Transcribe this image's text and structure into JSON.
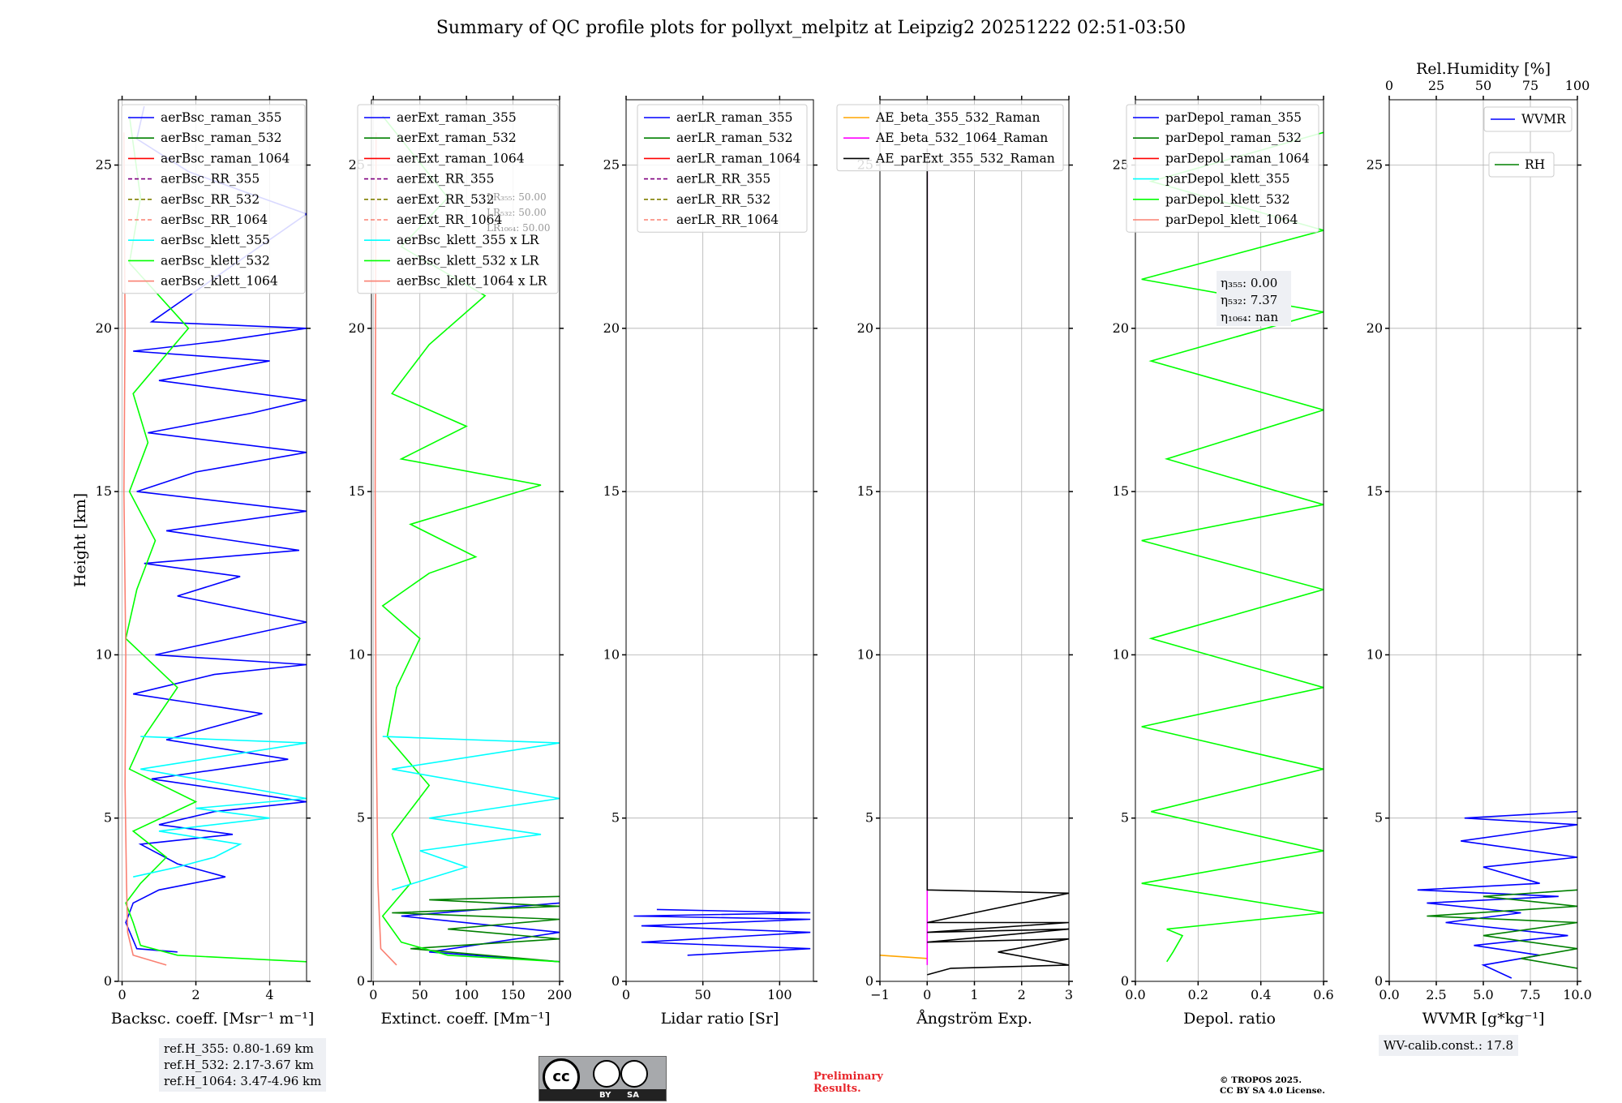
{
  "title": "Summary of QC profile plots for pollyxt_melpitz at Leipzig2 20251222 02:51-03:50",
  "ylabel": "Height [km]",
  "ref_info": [
    "ref.H_355: 0.80-1.69 km",
    "ref.H_532: 2.17-3.67 km",
    "ref.H_1064: 3.47-4.96 km"
  ],
  "wv_calib": "WV-calib.const.: 17.8",
  "prelim": [
    "Preliminary",
    "Results."
  ],
  "copyright": [
    "© TROPOS 2025.",
    "CC BY SA 4.0 License."
  ],
  "cc_logo": {
    "left": "cc",
    "by": "BY",
    "sa": "SA"
  },
  "colors": {
    "blue": "#0000ff",
    "green": "#00ff00",
    "darkgreen": "#008000",
    "cyan": "#00ffff",
    "salmon": "#fa8072",
    "red": "#ff0000",
    "orange": "#ffa500",
    "magenta": "#ff00ff",
    "purple": "#800080",
    "olive": "#808000",
    "black": "#000000"
  },
  "chart_data": [
    {
      "id": "bsc",
      "type": "line",
      "xlabel": "Backsc. coeff. [Msr⁻¹ m⁻¹]",
      "xlim": [
        -0.1,
        5
      ],
      "ylim": [
        0,
        27
      ],
      "xticks": [
        0,
        2,
        4
      ],
      "yticks": [
        0,
        5,
        10,
        15,
        20,
        25
      ],
      "legend": [
        "aerBsc_raman_355",
        "aerBsc_raman_532",
        "aerBsc_raman_1064",
        "aerBsc_RR_355",
        "aerBsc_RR_532",
        "aerBsc_RR_1064",
        "aerBsc_klett_355",
        "aerBsc_klett_532",
        "aerBsc_klett_1064"
      ],
      "legend_colors": [
        "blue",
        "darkgreen",
        "red",
        "purple",
        "olive",
        "salmon",
        "cyan",
        "green",
        "salmon"
      ],
      "legend_dashed": [
        false,
        false,
        false,
        true,
        true,
        true,
        false,
        false,
        false
      ],
      "series": [
        {
          "name": "aerBsc_raman_355",
          "color": "blue",
          "x": [
            1.5,
            0.4,
            0.1,
            0.3,
            1.0,
            2.8,
            1.5,
            0.5,
            3.0,
            1.0,
            2.5,
            5.0,
            0.8,
            4.5,
            1.2,
            3.8,
            0.3,
            2.5,
            5.0,
            0.9,
            5.0,
            1.5,
            3.2,
            0.6,
            4.8,
            1.2,
            5.0,
            0.4,
            2.0,
            5.0,
            0.7,
            3.5,
            5.0,
            1.0,
            4.0,
            0.3,
            2.6,
            5.0,
            0.8,
            5.0,
            1.8,
            0.4,
            0.6
          ],
          "y": [
            0.9,
            1.0,
            1.8,
            2.4,
            2.8,
            3.2,
            3.6,
            4.2,
            4.5,
            4.8,
            5.2,
            5.5,
            6.2,
            6.8,
            7.4,
            8.2,
            8.8,
            9.4,
            9.7,
            10.0,
            11.0,
            11.8,
            12.4,
            12.8,
            13.2,
            13.8,
            14.4,
            15.0,
            15.6,
            16.2,
            16.8,
            17.4,
            17.8,
            18.4,
            19.0,
            19.3,
            19.6,
            20.0,
            20.2,
            23.5,
            24.8,
            25.8,
            26.8
          ]
        },
        {
          "name": "aerBsc_klett_532",
          "color": "green",
          "x": [
            5.0,
            1.5,
            0.5,
            0.3,
            0.1,
            0.5,
            1.2,
            0.3,
            2.0,
            0.2,
            0.6,
            1.5,
            0.1,
            0.4,
            0.9,
            0.2,
            0.7,
            0.3,
            1.8,
            0.2,
            0.5,
            0.2
          ],
          "y": [
            0.6,
            0.8,
            1.1,
            1.8,
            2.4,
            3.0,
            3.8,
            4.6,
            5.5,
            6.5,
            7.5,
            9.0,
            10.5,
            12.0,
            13.5,
            15.0,
            16.5,
            18.0,
            20.0,
            22.0,
            24.0,
            26.5
          ]
        },
        {
          "name": "aerBsc_klett_355",
          "color": "cyan",
          "x": [
            0.3,
            1.5,
            2.5,
            3.2,
            1.0,
            4.0,
            2.0,
            5.0,
            0.5,
            5.0,
            0.5
          ],
          "y": [
            3.2,
            3.5,
            3.8,
            4.2,
            4.6,
            5.0,
            5.3,
            5.6,
            6.5,
            7.3,
            7.5
          ]
        },
        {
          "name": "aerBsc_klett_1064",
          "color": "salmon",
          "x": [
            1.2,
            0.3,
            0.15,
            0.12,
            0.08,
            0.1,
            0.05,
            0.08,
            0.05
          ],
          "y": [
            0.5,
            0.8,
            1.5,
            3.0,
            6.0,
            10.0,
            15.0,
            20.0,
            26.0
          ]
        }
      ]
    },
    {
      "id": "ext",
      "type": "line",
      "xlabel": "Extinct. coeff. [Mm⁻¹]",
      "xlim": [
        -2,
        200
      ],
      "ylim": [
        0,
        27
      ],
      "xticks": [
        0,
        50,
        100,
        150,
        200
      ],
      "yticks": [
        0,
        5,
        10,
        15,
        20,
        25
      ],
      "legend": [
        "aerExt_raman_355",
        "aerExt_raman_532",
        "aerExt_raman_1064",
        "aerExt_RR_355",
        "aerExt_RR_532",
        "aerExt_RR_1064",
        "aerBsc_klett_355 x LR",
        "aerBsc_klett_532 x LR",
        "aerBsc_klett_1064 x LR"
      ],
      "legend_colors": [
        "blue",
        "darkgreen",
        "red",
        "purple",
        "olive",
        "salmon",
        "cyan",
        "green",
        "salmon"
      ],
      "legend_dashed": [
        false,
        false,
        false,
        true,
        true,
        true,
        false,
        false,
        false
      ],
      "lr_labels": [
        "LR₃₅₅: 50.00",
        "LR₅₃₂: 50.00",
        "LR₁₀₆₄: 50.00"
      ],
      "series": [
        {
          "name": "aerExt_raman_355",
          "color": "blue",
          "x": [
            200,
            60,
            200,
            30,
            200
          ],
          "y": [
            0.6,
            0.9,
            1.5,
            2.0,
            2.4
          ]
        },
        {
          "name": "aerExt_raman_532",
          "color": "darkgreen",
          "x": [
            200,
            40,
            200,
            80,
            200,
            20,
            200,
            60,
            200
          ],
          "y": [
            0.6,
            1.0,
            1.3,
            1.6,
            1.9,
            2.1,
            2.3,
            2.5,
            2.6
          ]
        },
        {
          "name": "aerBsc_klett_532 x LR",
          "color": "green",
          "x": [
            200,
            80,
            30,
            10,
            40,
            20,
            60,
            15,
            25,
            50,
            10,
            60,
            110,
            40,
            180,
            30,
            100,
            20,
            60,
            120,
            30,
            80,
            10
          ],
          "y": [
            0.6,
            0.8,
            1.2,
            2.0,
            3.0,
            4.5,
            6.0,
            7.5,
            9.0,
            10.5,
            11.5,
            12.5,
            13.0,
            14.0,
            15.2,
            16.0,
            17.0,
            18.0,
            19.5,
            21.0,
            22.5,
            24.0,
            26.5
          ]
        },
        {
          "name": "aerBsc_klett_355 x LR",
          "color": "cyan",
          "x": [
            20,
            100,
            50,
            180,
            60,
            200,
            20,
            200,
            10
          ],
          "y": [
            2.8,
            3.5,
            4.0,
            4.5,
            5.0,
            5.6,
            6.5,
            7.3,
            7.5
          ]
        },
        {
          "name": "aerBsc_klett_1064 x LR",
          "color": "salmon",
          "x": [
            25,
            8,
            5,
            3,
            2,
            3
          ],
          "y": [
            0.5,
            1.0,
            3.0,
            8.0,
            15.0,
            26.0
          ]
        }
      ]
    },
    {
      "id": "lr",
      "type": "line",
      "xlabel": "Lidar ratio [Sr]",
      "xlim": [
        0,
        122
      ],
      "ylim": [
        0,
        27
      ],
      "xticks": [
        0,
        50,
        100
      ],
      "yticks": [
        0,
        5,
        10,
        15,
        20,
        25
      ],
      "legend": [
        "aerLR_raman_355",
        "aerLR_raman_532",
        "aerLR_raman_1064",
        "aerLR_RR_355",
        "aerLR_RR_532",
        "aerLR_RR_1064"
      ],
      "legend_colors": [
        "blue",
        "darkgreen",
        "red",
        "purple",
        "olive",
        "salmon"
      ],
      "legend_dashed": [
        false,
        false,
        false,
        true,
        true,
        true
      ],
      "series": [
        {
          "name": "aerLR_raman_355",
          "color": "blue",
          "x": [
            40,
            120,
            10,
            120,
            10,
            120,
            5,
            120,
            20
          ],
          "y": [
            0.8,
            1.0,
            1.2,
            1.5,
            1.7,
            1.9,
            2.0,
            2.1,
            2.2
          ]
        }
      ]
    },
    {
      "id": "ae",
      "type": "line",
      "xlabel": "Ångström Exp.",
      "xlim": [
        -1,
        3
      ],
      "ylim": [
        0,
        27
      ],
      "xticks": [
        -1,
        0,
        1,
        2,
        3
      ],
      "yticks": [
        0,
        5,
        10,
        15,
        20,
        25
      ],
      "legend": [
        "AE_beta_355_532_Raman",
        "AE_beta_532_1064_Raman",
        "AE_parExt_355_532_Raman"
      ],
      "legend_colors": [
        "orange",
        "magenta",
        "black"
      ],
      "legend_dashed": [
        false,
        false,
        false
      ],
      "series": [
        {
          "name": "AE_beta_355_532_Raman",
          "color": "orange",
          "x": [
            -1.0,
            0.0
          ],
          "y": [
            0.8,
            0.7
          ]
        },
        {
          "name": "AE_beta_532_1064_Raman",
          "color": "magenta",
          "x": [
            0.0,
            0.0
          ],
          "y": [
            0.5,
            25.5
          ]
        },
        {
          "name": "AE_parExt_355_532_Raman",
          "color": "black",
          "x": [
            0,
            0.5,
            3.0,
            1.5,
            3.0,
            0.0,
            3.0,
            0.0,
            3.0,
            0.0,
            3.0,
            0.0,
            0.0
          ],
          "y": [
            0.2,
            0.4,
            0.5,
            0.9,
            1.3,
            1.2,
            1.6,
            1.5,
            1.8,
            1.8,
            2.7,
            2.8,
            25.5
          ]
        }
      ]
    },
    {
      "id": "depol",
      "type": "line",
      "xlabel": "Depol. ratio",
      "xlim": [
        0,
        0.6
      ],
      "ylim": [
        0,
        27
      ],
      "xticks": [
        0.0,
        0.2,
        0.4,
        0.6
      ],
      "yticks": [
        0,
        5,
        10,
        15,
        20,
        25
      ],
      "legend": [
        "parDepol_raman_355",
        "parDepol_raman_532",
        "parDepol_raman_1064",
        "parDepol_klett_355",
        "parDepol_klett_532",
        "parDepol_klett_1064"
      ],
      "legend_colors": [
        "blue",
        "darkgreen",
        "red",
        "cyan",
        "green",
        "salmon"
      ],
      "legend_dashed": [
        false,
        false,
        false,
        false,
        false,
        false
      ],
      "eta_labels": [
        "η₃₅₅: 0.00",
        "η₅₃₂: 7.37",
        "η₁₀₆₄: nan"
      ],
      "series": [
        {
          "name": "parDepol_klett_532",
          "color": "green",
          "x": [
            0.1,
            0.12,
            0.15,
            0.1,
            0.6,
            0.02,
            0.6,
            0.05,
            0.6,
            0.02,
            0.6,
            0.05,
            0.6,
            0.02,
            0.6,
            0.1,
            0.6,
            0.05,
            0.6,
            0.02,
            0.6,
            0.05,
            0.6
          ],
          "y": [
            0.6,
            0.9,
            1.4,
            1.6,
            2.1,
            3.0,
            4.0,
            5.2,
            6.5,
            7.8,
            9.0,
            10.5,
            12.0,
            13.5,
            14.6,
            16.0,
            17.5,
            19.0,
            20.5,
            21.5,
            23.0,
            24.5,
            26.0
          ]
        }
      ]
    },
    {
      "id": "wv",
      "type": "line",
      "xlabel": "WVMR [g*kg⁻¹]",
      "top_xlabel": "Rel.Humidity [%]",
      "xlim": [
        0,
        10
      ],
      "ylim": [
        0,
        27
      ],
      "xticks": [
        "0.0",
        "2.5",
        "5.0",
        "7.5",
        "10.0"
      ],
      "top_xticks": [
        "0",
        "25",
        "50",
        "75",
        "100"
      ],
      "yticks": [
        0,
        5,
        10,
        15,
        20,
        25
      ],
      "legend": [
        "WVMR",
        "RH"
      ],
      "legend_colors": [
        "blue",
        "darkgreen"
      ],
      "series": [
        {
          "name": "WVMR",
          "color": "blue",
          "x": [
            6.5,
            5.0,
            8.0,
            4.5,
            9.5,
            3.0,
            7.0,
            2.0,
            9.0,
            1.5,
            8.0,
            5.0,
            10.0,
            3.8,
            10.0,
            4.0,
            10.0
          ],
          "y": [
            0.1,
            0.5,
            0.8,
            1.1,
            1.4,
            1.8,
            2.1,
            2.4,
            2.6,
            2.8,
            3.0,
            3.5,
            3.8,
            4.3,
            4.8,
            5.0,
            5.2
          ]
        },
        {
          "name": "RH",
          "color": "darkgreen",
          "x": [
            10.0,
            7.0,
            10.0,
            5.0,
            10.0,
            2.0,
            10.0,
            5.0,
            10.0
          ],
          "y": [
            0.4,
            0.7,
            1.0,
            1.4,
            1.8,
            2.0,
            2.3,
            2.6,
            2.8
          ]
        }
      ]
    }
  ]
}
